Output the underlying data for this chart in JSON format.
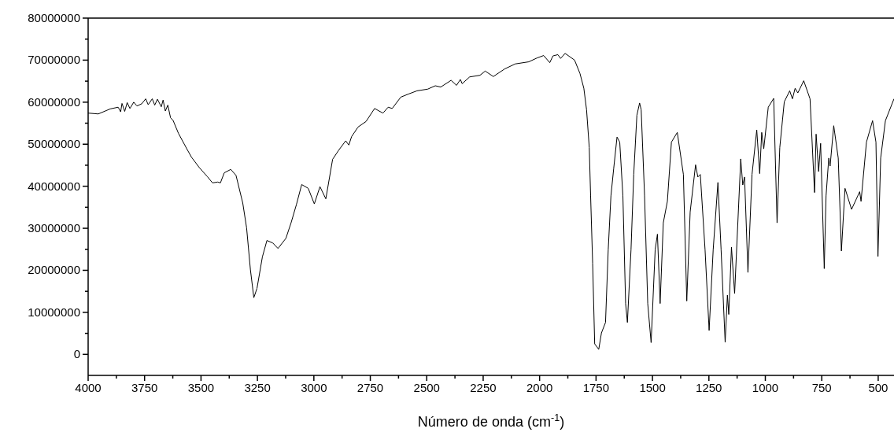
{
  "chart_data": {
    "type": "line",
    "xlabel": "Número de onda (cm$^{-1}$)",
    "xlim": [
      4000,
      430
    ],
    "ylim": [
      -5000000,
      80000000
    ],
    "xticks": [
      4000,
      {
        "value": 3875,
        "label": null
      },
      3750,
      {
        "value": 3625,
        "label": null
      },
      3500,
      {
        "value": 3375,
        "label": null
      },
      3250,
      {
        "value": 3125,
        "label": null
      },
      3000,
      {
        "value": 2875,
        "label": null
      },
      2750,
      {
        "value": 2625,
        "label": null
      },
      2500,
      {
        "value": 2375,
        "label": null
      },
      2250,
      {
        "value": 2125,
        "label": null
      },
      2000,
      {
        "value": 1875,
        "label": null
      },
      1750,
      {
        "value": 1625,
        "label": null
      },
      1500,
      {
        "value": 1375,
        "label": null
      },
      1250,
      {
        "value": 1125,
        "label": null
      },
      1000,
      {
        "value": 875,
        "label": null
      },
      750,
      {
        "value": 625,
        "label": null
      },
      500
    ],
    "yticks": [
      0,
      {
        "value": 5000000,
        "label": null
      },
      10000000,
      {
        "value": 15000000,
        "label": null
      },
      20000000,
      {
        "value": 25000000,
        "label": null
      },
      30000000,
      {
        "value": 35000000,
        "label": null
      },
      40000000,
      {
        "value": 45000000,
        "label": null
      },
      50000000,
      {
        "value": 55000000,
        "label": null
      },
      60000000,
      {
        "value": 65000000,
        "label": null
      },
      70000000,
      {
        "value": 75000000,
        "label": null
      },
      80000000
    ],
    "grid": false,
    "marker": "none",
    "line_style": "solid",
    "series": [
      {
        "color": "#000000",
        "x": [
          4000,
          3955,
          3902,
          3867,
          3856,
          3850,
          3838,
          3827,
          3815,
          3798,
          3784,
          3763,
          3745,
          3734,
          3716,
          3705,
          3693,
          3676,
          3668,
          3658,
          3647,
          3635,
          3624,
          3600,
          3565,
          3542,
          3507,
          3472,
          3449,
          3426,
          3414,
          3397,
          3368,
          3345,
          3315,
          3298,
          3281,
          3266,
          3252,
          3228,
          3208,
          3182,
          3159,
          3124,
          3101,
          3077,
          3054,
          3025,
          2998,
          2973,
          2947,
          2917,
          2891,
          2859,
          2845,
          2833,
          2804,
          2769,
          2731,
          2694,
          2671,
          2653,
          2615,
          2578,
          2543,
          2496,
          2462,
          2438,
          2392,
          2368,
          2351,
          2343,
          2310,
          2264,
          2241,
          2205,
          2155,
          2108,
          2048,
          2012,
          1982,
          1955,
          1941,
          1919,
          1907,
          1887,
          1845,
          1821,
          1804,
          1792,
          1780,
          1774,
          1765,
          1756,
          1738,
          1726,
          1708,
          1696,
          1684,
          1672,
          1657,
          1645,
          1631,
          1619,
          1611,
          1595,
          1583,
          1569,
          1557,
          1550,
          1535,
          1521,
          1506,
          1488,
          1478,
          1466,
          1452,
          1434,
          1416,
          1390,
          1363,
          1348,
          1333,
          1309,
          1299,
          1288,
          1267,
          1249,
          1231,
          1210,
          1196,
          1178,
          1168,
          1162,
          1150,
          1136,
          1109,
          1100,
          1092,
          1077,
          1059,
          1038,
          1025,
          1016,
          1007,
          987,
          963,
          948,
          936,
          916,
          892,
          880,
          868,
          856,
          830,
          802,
          782,
          775,
          764,
          755,
          739,
          731,
          719,
          713,
          697,
          677,
          663,
          647,
          618,
          582,
          576,
          552,
          525,
          510,
          501,
          489,
          468,
          430
        ],
        "values": [
          57400000,
          57200000,
          58400000,
          58800000,
          57700000,
          59700000,
          57800000,
          59900000,
          58500000,
          60000000,
          59100000,
          59600000,
          60800000,
          59400000,
          60800000,
          59300000,
          60700000,
          58900000,
          60500000,
          57900000,
          59300000,
          56300000,
          55700000,
          52600000,
          49100000,
          46900000,
          44400000,
          42300000,
          40800000,
          41000000,
          40800000,
          43200000,
          44000000,
          42600000,
          36000000,
          30100000,
          20100000,
          13500000,
          15700000,
          23200000,
          27100000,
          26500000,
          25200000,
          27600000,
          31300000,
          35700000,
          40400000,
          39500000,
          35800000,
          39900000,
          37000000,
          46400000,
          48500000,
          50800000,
          49800000,
          51800000,
          54100000,
          55400000,
          58500000,
          57400000,
          58800000,
          58500000,
          61200000,
          62000000,
          62700000,
          63100000,
          63900000,
          63600000,
          65200000,
          64000000,
          65400000,
          64400000,
          66000000,
          66400000,
          67400000,
          66100000,
          67900000,
          69100000,
          69600000,
          70500000,
          71100000,
          69400000,
          71000000,
          71300000,
          70400000,
          71600000,
          70000000,
          66800000,
          63300000,
          58200000,
          49200000,
          37700000,
          21700000,
          2500000,
          1200000,
          5100000,
          7600000,
          24900000,
          37700000,
          44100000,
          51700000,
          50500000,
          37700000,
          12100000,
          7600000,
          24900000,
          42800000,
          56900000,
          59800000,
          58200000,
          37700000,
          12100000,
          2800000,
          24900000,
          28600000,
          12100000,
          31300000,
          36400000,
          50500000,
          52800000,
          42800000,
          12700000,
          33900000,
          45100000,
          42200000,
          42800000,
          24900000,
          5700000,
          24900000,
          40900000,
          24900000,
          2900000,
          14100000,
          9500000,
          25500000,
          14500000,
          46500000,
          40300000,
          42200000,
          19500000,
          42800000,
          53400000,
          43000000,
          52800000,
          48900000,
          58800000,
          60900000,
          31300000,
          49200000,
          60100000,
          62700000,
          60800000,
          63300000,
          62200000,
          65100000,
          60800000,
          38500000,
          52400000,
          43500000,
          50200000,
          20400000,
          37700000,
          46700000,
          44800000,
          54400000,
          46700000,
          24600000,
          39500000,
          34500000,
          38700000,
          36400000,
          50500000,
          55600000,
          50500000,
          23300000,
          46700000,
          55600000,
          60800000
        ]
      }
    ]
  }
}
